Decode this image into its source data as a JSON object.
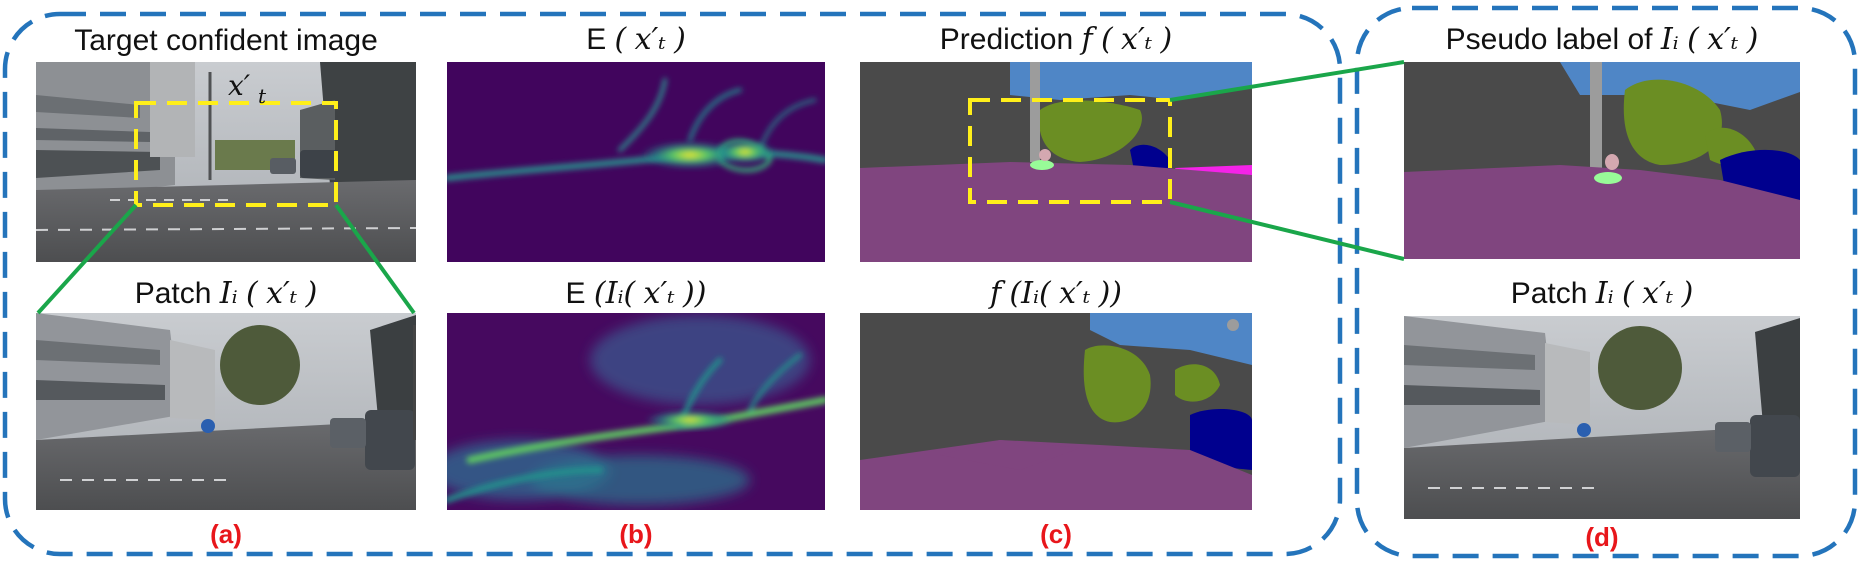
{
  "colors": {
    "group_border": "#2474bb",
    "zoom_lines": "#1aa64a",
    "crop_box": "#ffef1a",
    "panel_label": "#e8161b",
    "seg_road": "#80457f",
    "seg_building": "#4a4a4a",
    "seg_sky": "#4f86c6",
    "seg_vegetation": "#6b8e23",
    "seg_car": "#00008e",
    "seg_pole": "#9c9c9c",
    "seg_person": "#d4a8b0",
    "seg_terrain": "#98fb98",
    "seg_sidewalk": "#f423e8"
  },
  "captions": {
    "a_top": "Target confident image",
    "a_bottom_prefix": "Patch",
    "b_top_prefix": "E",
    "b_bottom_prefix": "E",
    "c_top_prefix": "Prediction",
    "pseudo_label_prefix": "Pseudo label of",
    "d_bottom_prefix": "Patch",
    "f_symbol": "f",
    "x_t": "x′ₜ",
    "patch_expr": "Iᵢ",
    "paren_open": "(",
    "paren_close": ")"
  },
  "panel_labels": {
    "a": "(a)",
    "b": "(b)",
    "c": "(c)",
    "d": "(d)"
  },
  "images": {
    "target_image": "street-scene-photo",
    "patch_image": "street-scene-patch-photo",
    "entropy_full": "entropy-heatmap",
    "entropy_patch": "entropy-heatmap-patch",
    "prediction_full": "segmentation-map",
    "prediction_patch": "segmentation-map-patch",
    "pseudo_label": "pseudo-label-segmentation-map",
    "patch_image_d": "street-scene-patch-photo"
  }
}
